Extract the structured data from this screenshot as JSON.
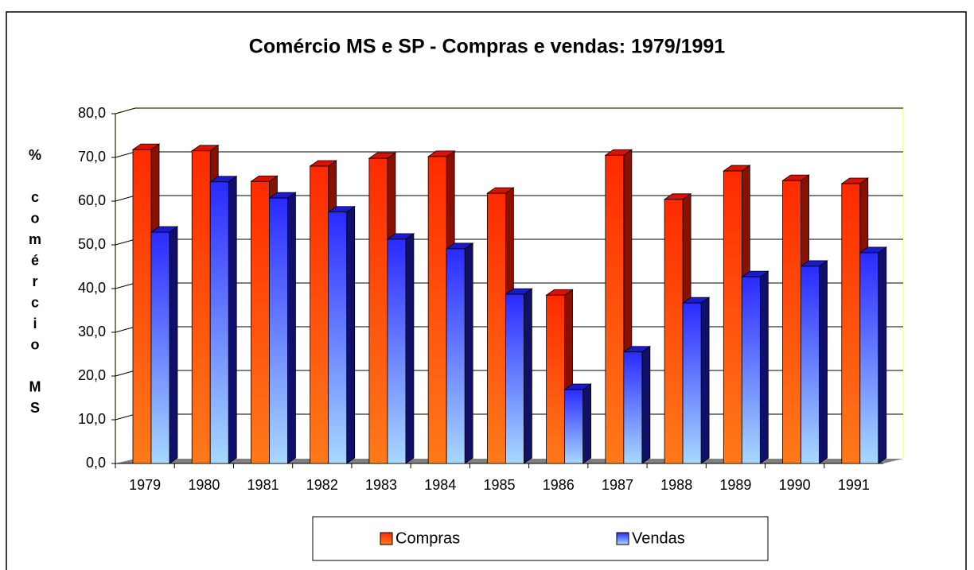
{
  "chart_data": {
    "type": "bar3d",
    "title": "Comércio MS e SP - Compras e vendas: 1979/1991",
    "y_label": "% comércio MS",
    "categories": [
      "1979",
      "1980",
      "1981",
      "1982",
      "1983",
      "1984",
      "1985",
      "1986",
      "1987",
      "1988",
      "1989",
      "1990",
      "1991"
    ],
    "series": [
      {
        "name": "Compras",
        "color": "#ff2a00",
        "values": [
          71.8,
          71.5,
          64.5,
          68.0,
          69.8,
          70.2,
          61.8,
          38.5,
          70.5,
          60.4,
          66.9,
          64.7,
          64.0
        ]
      },
      {
        "name": "Vendas",
        "color": "#2a2aff",
        "values": [
          52.9,
          64.4,
          60.7,
          57.5,
          51.3,
          49.1,
          38.7,
          16.9,
          25.5,
          36.7,
          42.7,
          45.1,
          48.2
        ]
      }
    ],
    "ylim": [
      0,
      80
    ],
    "yticks": [
      {
        "value": 0,
        "label": "0,0"
      },
      {
        "value": 10,
        "label": "10,0"
      },
      {
        "value": 20,
        "label": "20,0"
      },
      {
        "value": 30,
        "label": "30,0"
      },
      {
        "value": 40,
        "label": "40,0"
      },
      {
        "value": 50,
        "label": "50,0"
      },
      {
        "value": 60,
        "label": "60,0"
      },
      {
        "value": 70,
        "label": "70,0"
      },
      {
        "value": 80,
        "label": "80,0"
      }
    ],
    "grid": true
  }
}
